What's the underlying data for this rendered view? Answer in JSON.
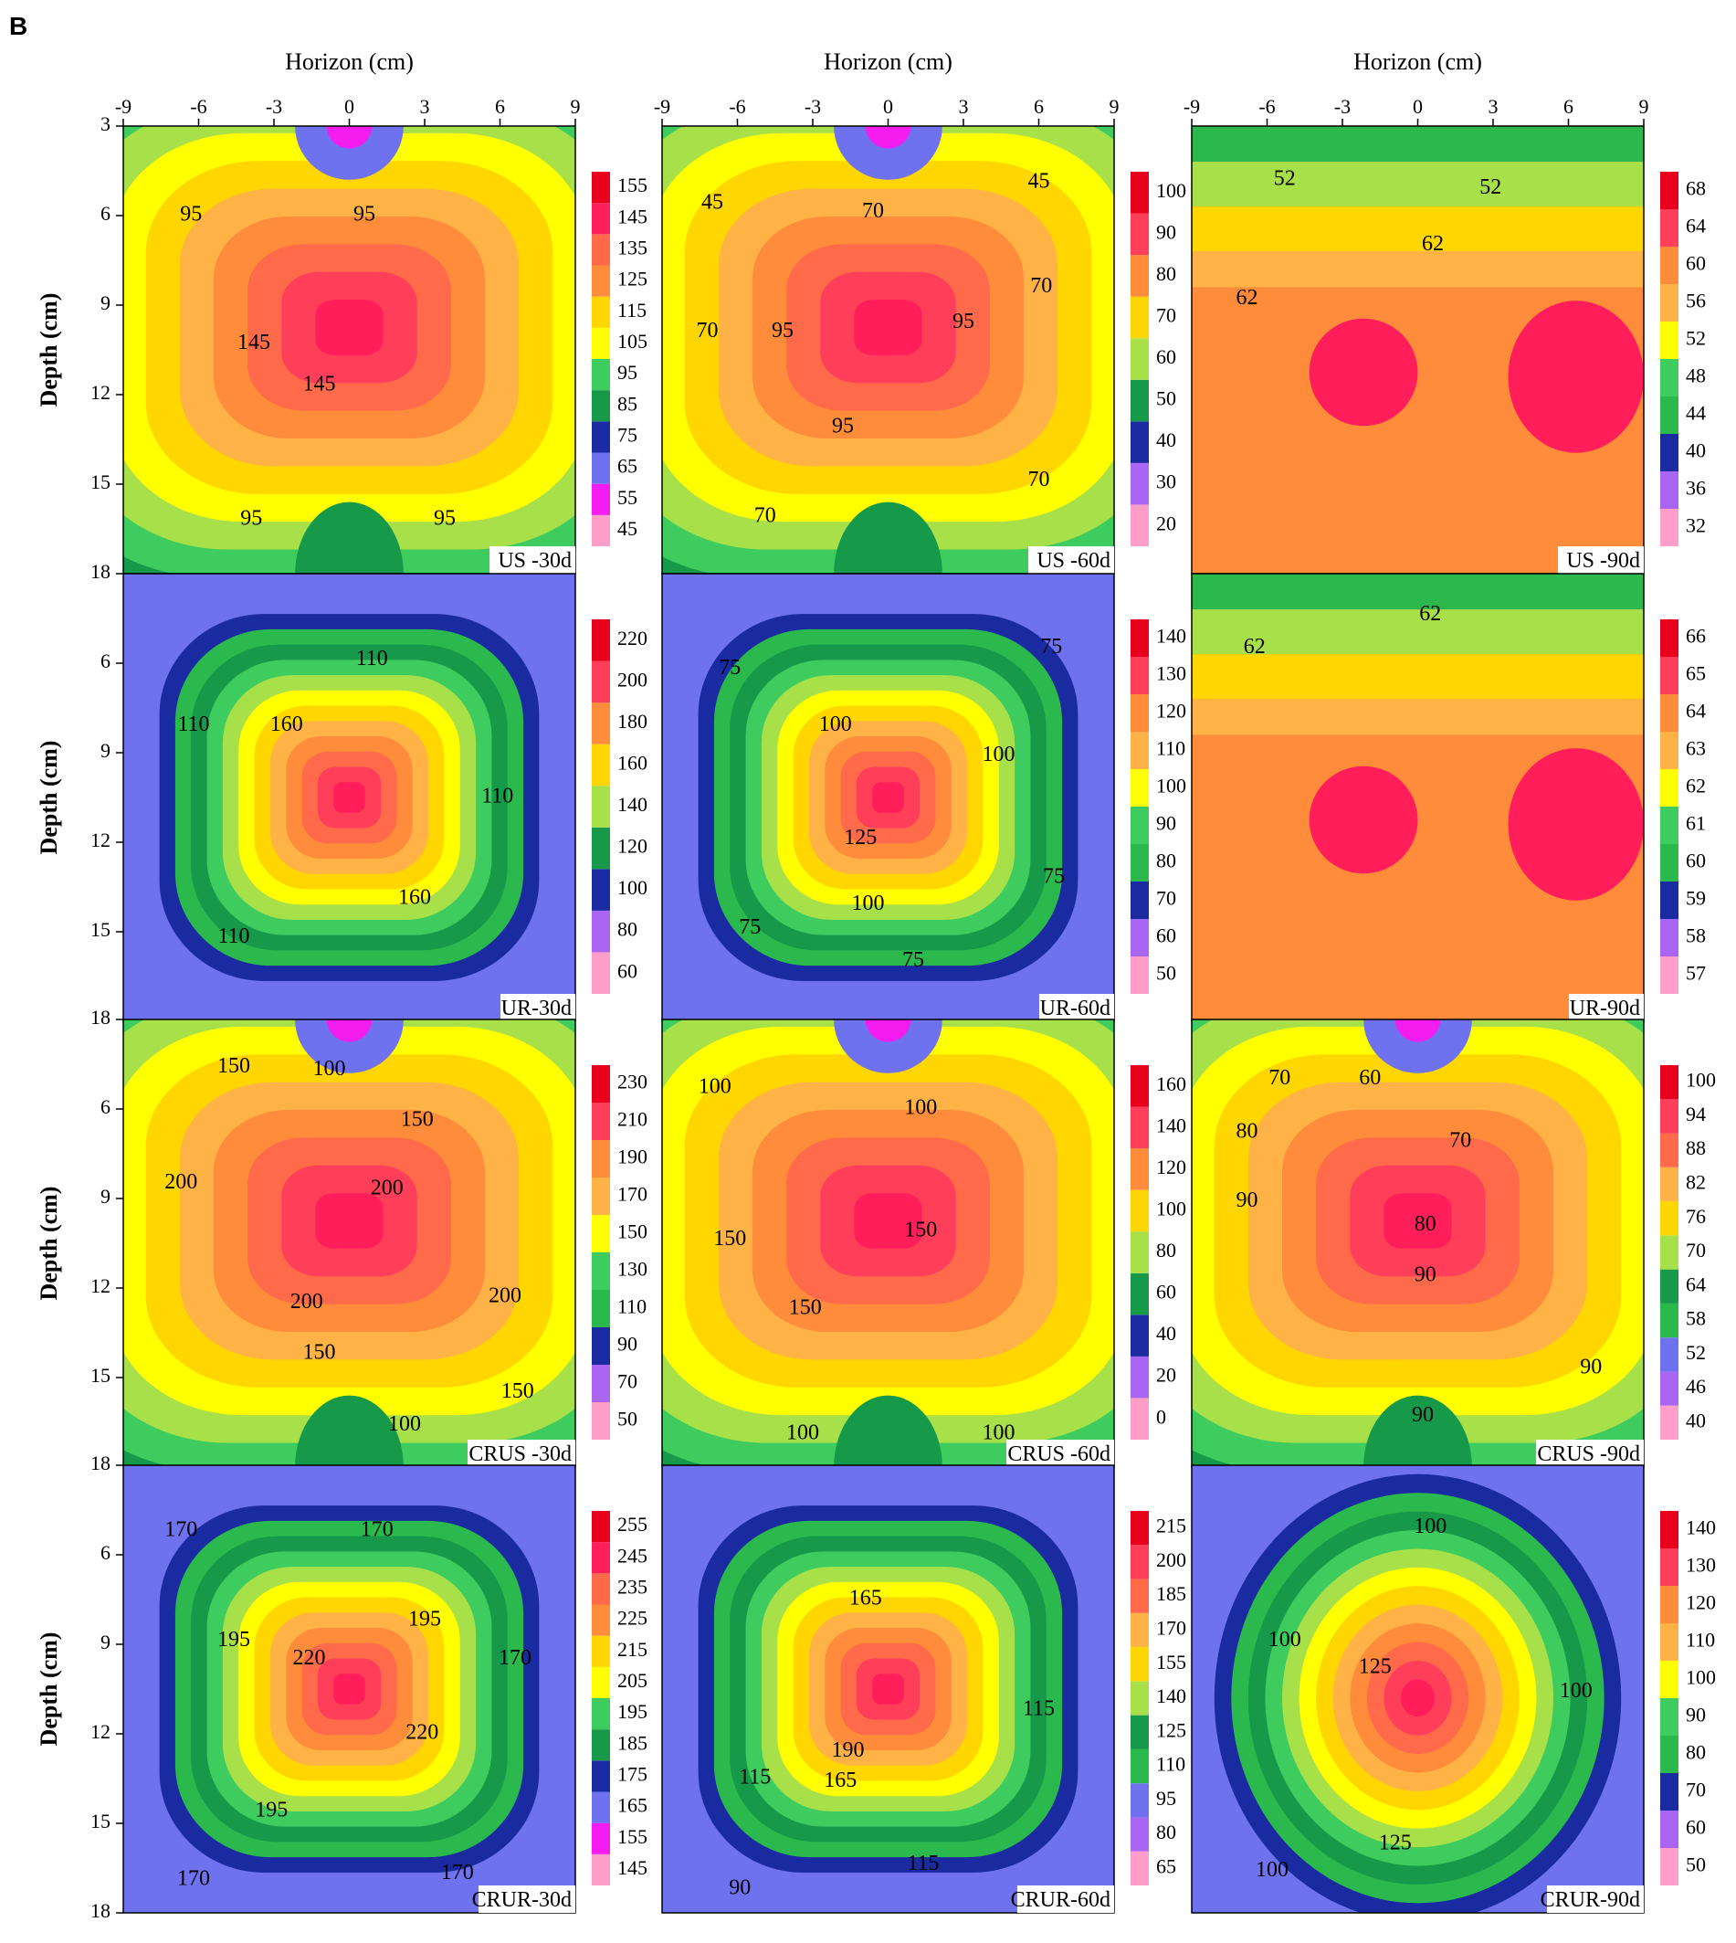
{
  "figure": {
    "panel_letter": "B",
    "x_axis_title": "Horizon (cm)",
    "y_axis_title": "Depth (cm)",
    "x_ticks": [
      -9,
      -6,
      -3,
      0,
      3,
      6,
      9
    ],
    "y_ticks": [
      3,
      6,
      9,
      12,
      15,
      18
    ],
    "row_y_tick_labels": [
      [
        3,
        6,
        9,
        12,
        15
      ],
      [
        18,
        6,
        9,
        12,
        15
      ],
      [
        18,
        6,
        9,
        12,
        15
      ],
      [
        18,
        6,
        9,
        12,
        15,
        18
      ]
    ]
  },
  "palette": [
    "#ff9ec8",
    "#f51cf0",
    "#aa66f2",
    "#6f72ee",
    "#1a2aa0",
    "#2bb84d",
    "#17994a",
    "#3fcc5e",
    "#a8e04a",
    "#ffff00",
    "#ffd600",
    "#ffb347",
    "#ff8c3a",
    "#ff6a4a",
    "#ff3e5a",
    "#ff1e5a",
    "#e8001c"
  ],
  "chart_data": [
    {
      "type": "heatmap",
      "label": "US -30d",
      "x": [
        -9,
        9
      ],
      "y": [
        3,
        18
      ],
      "colorbar": [
        45,
        55,
        65,
        75,
        85,
        95,
        105,
        115,
        125,
        135,
        145,
        155
      ],
      "shape": "band",
      "contours": [
        {
          "t": "95",
          "x": -6.3,
          "y": 6
        },
        {
          "t": "95",
          "x": 0.6,
          "y": 6
        },
        {
          "t": "145",
          "x": -3.8,
          "y": 10.3
        },
        {
          "t": "145",
          "x": -1.2,
          "y": 11.7
        },
        {
          "t": "95",
          "x": -3.9,
          "y": 16.2
        },
        {
          "t": "95",
          "x": 3.8,
          "y": 16.2
        }
      ]
    },
    {
      "type": "heatmap",
      "label": "US -60d",
      "x": [
        -9,
        9
      ],
      "y": [
        3,
        18
      ],
      "colorbar": [
        20,
        30,
        40,
        50,
        60,
        70,
        80,
        90,
        100
      ],
      "shape": "band",
      "contours": [
        {
          "t": "45",
          "x": -7,
          "y": 5.6
        },
        {
          "t": "45",
          "x": 6,
          "y": 4.9
        },
        {
          "t": "70",
          "x": -0.6,
          "y": 5.9
        },
        {
          "t": "70",
          "x": -7.2,
          "y": 9.9
        },
        {
          "t": "70",
          "x": 6.1,
          "y": 8.4
        },
        {
          "t": "95",
          "x": -4.2,
          "y": 9.9
        },
        {
          "t": "95",
          "x": 3,
          "y": 9.6
        },
        {
          "t": "95",
          "x": -1.8,
          "y": 13.1
        },
        {
          "t": "70",
          "x": 6,
          "y": 14.9
        },
        {
          "t": "70",
          "x": -4.9,
          "y": 16.1
        }
      ]
    },
    {
      "type": "heatmap",
      "label": "US -90d",
      "x": [
        -9,
        9
      ],
      "y": [
        3,
        18
      ],
      "colorbar": [
        32,
        36,
        40,
        44,
        48,
        52,
        56,
        60,
        64,
        68
      ],
      "shape": "plateau",
      "contours": [
        {
          "t": "52",
          "x": -5.3,
          "y": 4.8
        },
        {
          "t": "52",
          "x": 2.9,
          "y": 5.1
        },
        {
          "t": "62",
          "x": 0.6,
          "y": 7
        },
        {
          "t": "62",
          "x": -6.8,
          "y": 8.8
        }
      ]
    },
    {
      "type": "heatmap",
      "label": "UR-30d",
      "x": [
        -9,
        9
      ],
      "y": [
        18,
        18
      ],
      "colorbar": [
        60,
        80,
        100,
        120,
        140,
        160,
        180,
        200,
        220
      ],
      "shape": "blob",
      "contours": [
        {
          "t": "110",
          "x": 0.9,
          "y": 5.9
        },
        {
          "t": "110",
          "x": -6.2,
          "y": 8.1
        },
        {
          "t": "160",
          "x": -2.5,
          "y": 8.1
        },
        {
          "t": "110",
          "x": 5.9,
          "y": 10.5
        },
        {
          "t": "160",
          "x": 2.6,
          "y": 13.9
        },
        {
          "t": "110",
          "x": -4.6,
          "y": 15.2
        }
      ]
    },
    {
      "type": "heatmap",
      "label": "UR-60d",
      "x": [
        -9,
        9
      ],
      "y": [
        18,
        18
      ],
      "colorbar": [
        50,
        60,
        70,
        80,
        90,
        100,
        110,
        120,
        130,
        140
      ],
      "shape": "blob",
      "contours": [
        {
          "t": "75",
          "x": -6.3,
          "y": 6.2
        },
        {
          "t": "75",
          "x": 6.5,
          "y": 5.5
        },
        {
          "t": "100",
          "x": -2.1,
          "y": 8.1
        },
        {
          "t": "100",
          "x": 4.4,
          "y": 9.1
        },
        {
          "t": "125",
          "x": -1.1,
          "y": 11.9
        },
        {
          "t": "75",
          "x": 6.6,
          "y": 13.2
        },
        {
          "t": "100",
          "x": -0.8,
          "y": 14.1
        },
        {
          "t": "75",
          "x": -5.5,
          "y": 14.9
        },
        {
          "t": "75",
          "x": 1,
          "y": 16
        }
      ]
    },
    {
      "type": "heatmap",
      "label": "UR-90d",
      "x": [
        -9,
        9
      ],
      "y": [
        18,
        18
      ],
      "colorbar": [
        57,
        58,
        59,
        60,
        61,
        62,
        63,
        64,
        65,
        66
      ],
      "shape": "plateau",
      "contours": [
        {
          "t": "62",
          "x": -6.5,
          "y": 5.5
        },
        {
          "t": "62",
          "x": 0.5,
          "y": 4.4
        }
      ]
    },
    {
      "type": "heatmap",
      "label": "CRUS -30d",
      "x": [
        -9,
        9
      ],
      "y": [
        18,
        18
      ],
      "colorbar": [
        50,
        70,
        90,
        110,
        130,
        150,
        170,
        190,
        210,
        230
      ],
      "shape": "band",
      "contours": [
        {
          "t": "150",
          "x": -4.6,
          "y": 4.6
        },
        {
          "t": "100",
          "x": -0.8,
          "y": 4.7
        },
        {
          "t": "150",
          "x": 2.7,
          "y": 6.4
        },
        {
          "t": "200",
          "x": -6.7,
          "y": 8.5
        },
        {
          "t": "200",
          "x": 1.5,
          "y": 8.7
        },
        {
          "t": "200",
          "x": -1.7,
          "y": 12.5
        },
        {
          "t": "200",
          "x": 6.2,
          "y": 12.3
        },
        {
          "t": "150",
          "x": -1.2,
          "y": 14.2
        },
        {
          "t": "100",
          "x": 2.2,
          "y": 16.6
        },
        {
          "t": "150",
          "x": 6.7,
          "y": 15.5
        }
      ]
    },
    {
      "type": "heatmap",
      "label": "CRUS -60d",
      "x": [
        -9,
        9
      ],
      "y": [
        18,
        18
      ],
      "colorbar": [
        0,
        20,
        40,
        60,
        80,
        100,
        120,
        140,
        160
      ],
      "shape": "band",
      "contours": [
        {
          "t": "100",
          "x": -6.9,
          "y": 5.3
        },
        {
          "t": "100",
          "x": 1.3,
          "y": 6
        },
        {
          "t": "150",
          "x": -6.3,
          "y": 10.4
        },
        {
          "t": "150",
          "x": 1.3,
          "y": 10.1
        },
        {
          "t": "150",
          "x": -3.3,
          "y": 12.7
        },
        {
          "t": "100",
          "x": -3.4,
          "y": 16.9
        },
        {
          "t": "100",
          "x": 4.4,
          "y": 16.9
        }
      ]
    },
    {
      "type": "heatmap",
      "label": "CRUS -90d",
      "x": [
        -9,
        9
      ],
      "y": [
        18,
        18
      ],
      "colorbar": [
        40,
        46,
        52,
        58,
        64,
        70,
        76,
        82,
        88,
        94,
        100
      ],
      "shape": "band",
      "contours": [
        {
          "t": "70",
          "x": -5.5,
          "y": 5
        },
        {
          "t": "60",
          "x": -1.9,
          "y": 5
        },
        {
          "t": "80",
          "x": -6.8,
          "y": 6.8
        },
        {
          "t": "70",
          "x": 1.7,
          "y": 7.1
        },
        {
          "t": "90",
          "x": -6.8,
          "y": 9.1
        },
        {
          "t": "80",
          "x": 0.3,
          "y": 9.9
        },
        {
          "t": "90",
          "x": 0.3,
          "y": 11.6
        },
        {
          "t": "90",
          "x": 6.9,
          "y": 14.7
        },
        {
          "t": "90",
          "x": 0.2,
          "y": 16.3
        }
      ]
    },
    {
      "type": "heatmap",
      "label": "CRUR-30d",
      "x": [
        -9,
        9
      ],
      "y": [
        18,
        18
      ],
      "colorbar": [
        145,
        155,
        165,
        175,
        185,
        195,
        205,
        215,
        225,
        235,
        245,
        255
      ],
      "shape": "blob",
      "contours": [
        {
          "t": "170",
          "x": -6.7,
          "y": 5.2
        },
        {
          "t": "170",
          "x": 1.1,
          "y": 5.2
        },
        {
          "t": "195",
          "x": 3,
          "y": 8.2
        },
        {
          "t": "195",
          "x": -4.6,
          "y": 8.9
        },
        {
          "t": "220",
          "x": -1.6,
          "y": 9.5
        },
        {
          "t": "170",
          "x": 6.6,
          "y": 9.5
        },
        {
          "t": "220",
          "x": 2.9,
          "y": 12
        },
        {
          "t": "195",
          "x": -3.1,
          "y": 14.6
        },
        {
          "t": "170",
          "x": -6.2,
          "y": 16.9
        },
        {
          "t": "170",
          "x": 4.3,
          "y": 16.7
        }
      ]
    },
    {
      "type": "heatmap",
      "label": "CRUR-60d",
      "x": [
        -9,
        9
      ],
      "y": [
        18,
        18
      ],
      "colorbar": [
        65,
        80,
        95,
        110,
        125,
        140,
        155,
        170,
        185,
        200,
        215
      ],
      "shape": "blob",
      "contours": [
        {
          "t": "165",
          "x": -0.9,
          "y": 7.5
        },
        {
          "t": "115",
          "x": 6,
          "y": 11.2
        },
        {
          "t": "190",
          "x": -1.6,
          "y": 12.6
        },
        {
          "t": "115",
          "x": -5.3,
          "y": 13.5
        },
        {
          "t": "165",
          "x": -1.9,
          "y": 13.6
        },
        {
          "t": "115",
          "x": 1.4,
          "y": 16.4
        },
        {
          "t": "90",
          "x": -5.9,
          "y": 17.2
        }
      ]
    },
    {
      "type": "heatmap",
      "label": "CRUR-90d",
      "x": [
        -9,
        9
      ],
      "y": [
        18,
        18
      ],
      "colorbar": [
        50,
        60,
        70,
        80,
        90,
        100,
        110,
        120,
        130,
        140
      ],
      "shape": "heart",
      "contours": [
        {
          "t": "100",
          "x": 0.5,
          "y": 5.1
        },
        {
          "t": "100",
          "x": -5.3,
          "y": 8.9
        },
        {
          "t": "125",
          "x": -1.7,
          "y": 9.8
        },
        {
          "t": "100",
          "x": 6.3,
          "y": 10.6
        },
        {
          "t": "125",
          "x": -0.9,
          "y": 15.7
        },
        {
          "t": "100",
          "x": -5.8,
          "y": 16.6
        }
      ]
    }
  ]
}
